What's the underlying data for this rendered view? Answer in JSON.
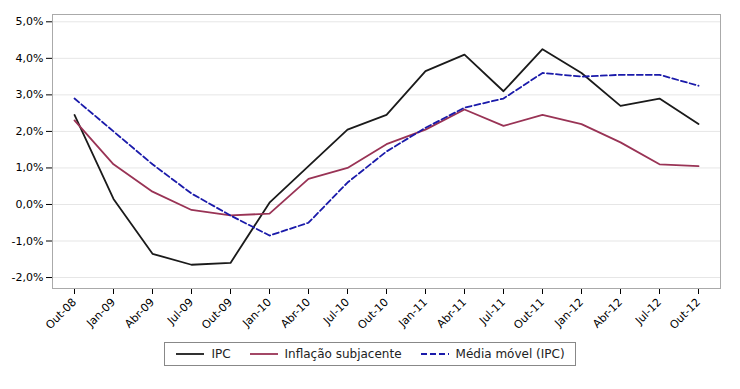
{
  "chart_data": {
    "type": "line",
    "categories": [
      "Out-08",
      "Jan-09",
      "Abr-09",
      "Jul-09",
      "Out-09",
      "Jan-10",
      "Abr-10",
      "Jul-10",
      "Out-10",
      "Jan-11",
      "Abr-11",
      "Jul-11",
      "Out-11",
      "Jan-12",
      "Abr-12",
      "Jul-12",
      "Out-12"
    ],
    "series": [
      {
        "name": "IPC",
        "color": "#1a1a1a",
        "line_style": "solid",
        "values": [
          2.45,
          0.15,
          -1.35,
          -1.65,
          -1.6,
          0.05,
          1.05,
          2.05,
          2.45,
          3.65,
          4.1,
          3.1,
          4.25,
          3.6,
          2.7,
          2.9,
          2.2
        ]
      },
      {
        "name": "Inflação subjacente",
        "color": "#993355",
        "line_style": "solid",
        "values": [
          2.3,
          1.1,
          0.35,
          -0.15,
          -0.3,
          -0.25,
          0.7,
          1.0,
          1.65,
          2.05,
          2.6,
          2.15,
          2.45,
          2.2,
          1.7,
          1.1,
          1.05
        ]
      },
      {
        "name": "Média móvel (IPC)",
        "color": "#1a1aaa",
        "line_style": "dashed",
        "values": [
          2.9,
          2.0,
          1.1,
          0.3,
          -0.3,
          -0.85,
          -0.5,
          0.6,
          1.45,
          2.1,
          2.65,
          2.9,
          3.6,
          3.5,
          3.55,
          3.55,
          3.25
        ]
      }
    ],
    "ylim": [
      -2.3,
      5.2
    ],
    "yticks": [
      {
        "value": -2.0,
        "label": "-2,0%"
      },
      {
        "value": -1.0,
        "label": "-1,0%"
      },
      {
        "value": 0.0,
        "label": "0,0%"
      },
      {
        "value": 1.0,
        "label": "1,0%"
      },
      {
        "value": 2.0,
        "label": "2,0%"
      },
      {
        "value": 3.0,
        "label": "3,0%"
      },
      {
        "value": 4.0,
        "label": "4,0%"
      },
      {
        "value": 5.0,
        "label": "5,0%"
      }
    ],
    "grid": true,
    "legend": "bottom"
  }
}
